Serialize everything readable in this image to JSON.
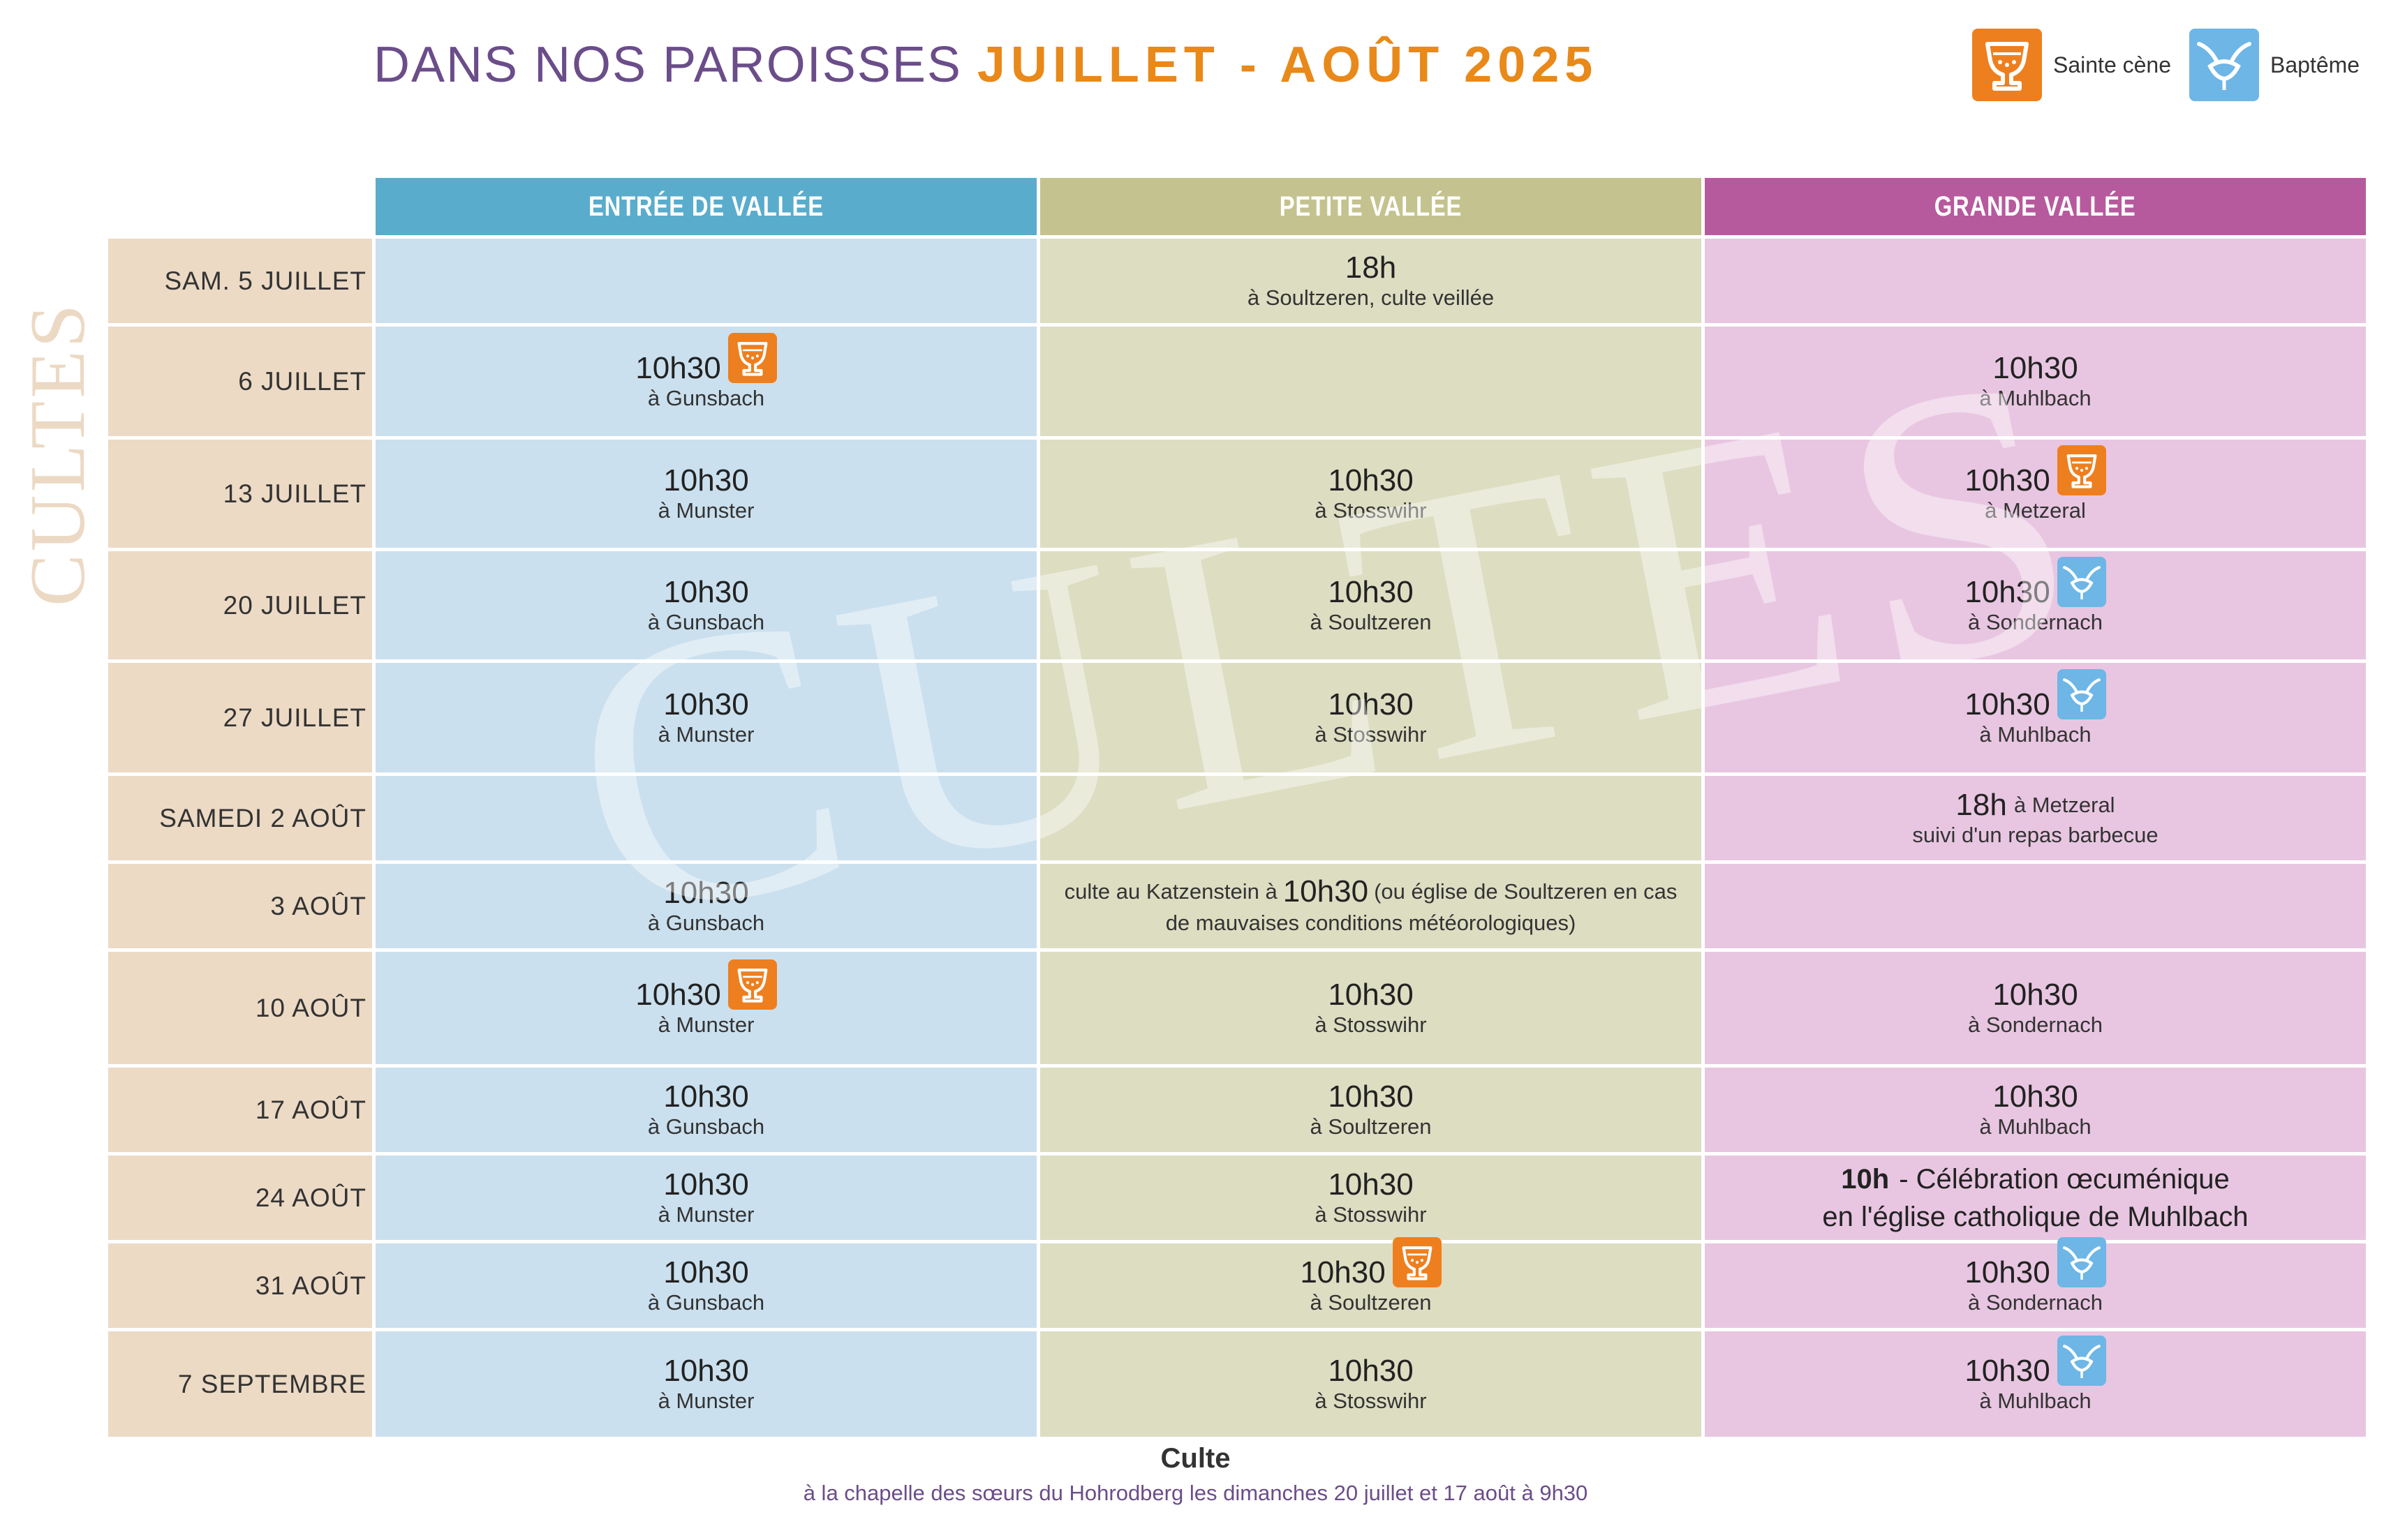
{
  "title": {
    "part1": "DANS NOS PAROISSES",
    "part2": "JUILLET - AOÛT 2025"
  },
  "legend": [
    {
      "icon": "communion-cup-icon",
      "label": "Sainte cène"
    },
    {
      "icon": "baptism-icon",
      "label": "Baptême"
    }
  ],
  "side_label": "CULTES",
  "watermark": "CULTES",
  "columns": [
    "ENTRÉE DE VALLÉE",
    "PETITE VALLÉE",
    "GRANDE VALLÉE"
  ],
  "colors": {
    "col1_header": "#5aaccc",
    "col2_header": "#c4c38f",
    "col3_header": "#b65a9d",
    "date_col": "#ecdac5",
    "cup_icon": "#ee7f1f",
    "baptism_icon": "#6db6e6"
  },
  "rows": [
    {
      "date": "SAM. 5 JUILLET",
      "cells": [
        null,
        {
          "time": "18h",
          "place": "à Soultzeren, culte veillée"
        },
        null
      ]
    },
    {
      "date": "6 JUILLET",
      "cells": [
        {
          "time": "10h30",
          "place": "à Gunsbach",
          "icon": "communion-cup-icon"
        },
        null,
        {
          "time": "10h30",
          "place": "à Muhlbach"
        }
      ]
    },
    {
      "date": "13 JUILLET",
      "cells": [
        {
          "time": "10h30",
          "place": "à Munster"
        },
        {
          "time": "10h30",
          "place": "à Stosswihr"
        },
        {
          "time": "10h30",
          "place": "à Metzeral",
          "icon": "communion-cup-icon"
        }
      ]
    },
    {
      "date": "20 JUILLET",
      "cells": [
        {
          "time": "10h30",
          "place": "à Gunsbach"
        },
        {
          "time": "10h30",
          "place": "à Soultzeren"
        },
        {
          "time": "10h30",
          "place": "à Sondernach",
          "icon": "baptism-icon"
        }
      ]
    },
    {
      "date": "27 JUILLET",
      "cells": [
        {
          "time": "10h30",
          "place": "à Munster"
        },
        {
          "time": "10h30",
          "place": "à Stosswihr"
        },
        {
          "time": "10h30",
          "place": "à Muhlbach",
          "icon": "baptism-icon"
        }
      ]
    },
    {
      "date": "SAMEDI 2 AOÛT",
      "cells": [
        null,
        null,
        {
          "time": "18h",
          "place_inline": "à Metzeral",
          "place": "suivi d'un repas barbecue"
        }
      ]
    },
    {
      "date": "3 AOÛT",
      "cells": [
        {
          "time": "10h30",
          "place": "à Gunsbach"
        },
        {
          "prefix": "culte au Katzenstein à",
          "time": "10h30",
          "suffix": "(ou église de Soultzeren en cas",
          "line2": "de mauvaises conditions météorologiques)"
        },
        null
      ]
    },
    {
      "date": "10 AOÛT",
      "cells": [
        {
          "time": "10h30",
          "place": "à Munster",
          "icon": "communion-cup-icon"
        },
        {
          "time": "10h30",
          "place": "à Stosswihr"
        },
        {
          "time": "10h30",
          "place": "à Sondernach"
        }
      ]
    },
    {
      "date": "17 AOÛT",
      "cells": [
        {
          "time": "10h30",
          "place": "à Gunsbach"
        },
        {
          "time": "10h30",
          "place": "à Soultzeren"
        },
        {
          "time": "10h30",
          "place": "à Muhlbach"
        }
      ]
    },
    {
      "date": "24 AOÛT",
      "cells": [
        {
          "time": "10h30",
          "place": "à Munster"
        },
        {
          "time": "10h30",
          "place": "à Stosswihr"
        },
        {
          "time": "10h",
          "text": "-  Célébration œcuménique",
          "line2": "en l'église catholique de Muhlbach"
        }
      ]
    },
    {
      "date": "31 AOÛT",
      "cells": [
        {
          "time": "10h30",
          "place": "à Gunsbach"
        },
        {
          "time": "10h30",
          "place": "à Soultzeren",
          "icon": "communion-cup-icon"
        },
        {
          "time": "10h30",
          "place": "à Sondernach",
          "icon": "baptism-icon"
        }
      ]
    },
    {
      "date": "7 SEPTEMBRE",
      "cells": [
        {
          "time": "10h30",
          "place": "à Munster"
        },
        {
          "time": "10h30",
          "place": "à Stosswihr"
        },
        {
          "time": "10h30",
          "place": "à Muhlbach",
          "icon": "baptism-icon"
        }
      ]
    }
  ],
  "footer": {
    "heading": "Culte",
    "text": "à la chapelle des sœurs du Hohrodberg les dimanches 20 juillet et 17 août à 9h30"
  }
}
